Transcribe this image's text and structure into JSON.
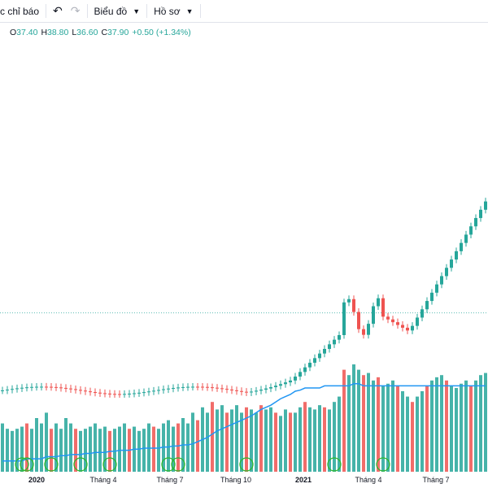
{
  "toolbar": {
    "indicators_label": "c chỉ báo",
    "chart_label": "Biểu đồ",
    "profile_label": "Hồ sơ"
  },
  "ohlc": {
    "open_label": "O",
    "open": "37.40",
    "high_label": "H",
    "high": "38.80",
    "low_label": "L",
    "low": "36.60",
    "close_label": "C",
    "close": "37.90",
    "change": "+0.50 (+1.34%)"
  },
  "colors": {
    "up": "#26a69a",
    "down": "#ef5350",
    "ma": "#2196f3",
    "event": "#2eb82e"
  },
  "chart_data": {
    "type": "candlestick",
    "x_axis_labels": [
      {
        "text": "2020",
        "bold": true
      },
      {
        "text": "Tháng 4",
        "bold": false
      },
      {
        "text": "Tháng 7",
        "bold": false
      },
      {
        "text": "Tháng 10",
        "bold": false
      },
      {
        "text": "2021",
        "bold": true
      },
      {
        "text": "Tháng 4",
        "bold": false
      },
      {
        "text": "Tháng 7",
        "bold": false
      }
    ],
    "y_range": [
      0,
      45
    ],
    "volume_range": [
      0,
      100
    ],
    "current_price_line": 37.9,
    "candles": [
      [
        0,
        0,
        1,
        0,
        45
      ],
      [
        0,
        0,
        1,
        0,
        40
      ],
      [
        0,
        0,
        1,
        0,
        38
      ],
      [
        0,
        0,
        1,
        0,
        40
      ],
      [
        0,
        0,
        1,
        0,
        42
      ],
      [
        1,
        0,
        1,
        0,
        45
      ],
      [
        0,
        0,
        1,
        0,
        40
      ],
      [
        0,
        0,
        1,
        0,
        50
      ],
      [
        0,
        0,
        1,
        0,
        45
      ],
      [
        0,
        0,
        1,
        0,
        55
      ],
      [
        1,
        0,
        1,
        0,
        40
      ],
      [
        0,
        0,
        1,
        0,
        45
      ],
      [
        0,
        0,
        1,
        0,
        40
      ],
      [
        0,
        0,
        1,
        0,
        50
      ],
      [
        0,
        0,
        1,
        0,
        45
      ],
      [
        1,
        0,
        1,
        0,
        40
      ],
      [
        0,
        0,
        1,
        0,
        38
      ],
      [
        0,
        0,
        1,
        0,
        40
      ],
      [
        0,
        0,
        1,
        0,
        42
      ],
      [
        0,
        0,
        1,
        0,
        45
      ],
      [
        0,
        0,
        1,
        0,
        40
      ],
      [
        0,
        0,
        1,
        0,
        42
      ],
      [
        1,
        0,
        1,
        0,
        38
      ],
      [
        0,
        0,
        1,
        0,
        40
      ],
      [
        0,
        0,
        1,
        0,
        42
      ],
      [
        0,
        0,
        1,
        0,
        45
      ],
      [
        1,
        0,
        1,
        0,
        40
      ],
      [
        0,
        0,
        1,
        0,
        42
      ],
      [
        0,
        0,
        1,
        0,
        38
      ],
      [
        0,
        0,
        1,
        0,
        40
      ],
      [
        0,
        0,
        1,
        0,
        45
      ],
      [
        1,
        0,
        1,
        0,
        42
      ],
      [
        0,
        0,
        1,
        0,
        40
      ],
      [
        0,
        0,
        1,
        0,
        45
      ],
      [
        0,
        0,
        1,
        0,
        48
      ],
      [
        0,
        0,
        1,
        0,
        42
      ],
      [
        1,
        0,
        1,
        0,
        45
      ],
      [
        0,
        0,
        1,
        0,
        50
      ],
      [
        0,
        0,
        1,
        0,
        45
      ],
      [
        0,
        0,
        1,
        0,
        55
      ],
      [
        1,
        0,
        1,
        0,
        48
      ],
      [
        0,
        0,
        1,
        0,
        60
      ],
      [
        0,
        0,
        1,
        0,
        55
      ],
      [
        1,
        0,
        1,
        0,
        65
      ],
      [
        0,
        0,
        1,
        0,
        58
      ],
      [
        0,
        0,
        1,
        0,
        62
      ],
      [
        1,
        0,
        1,
        0,
        55
      ],
      [
        0,
        0,
        1,
        0,
        58
      ],
      [
        0,
        0,
        1,
        0,
        62
      ],
      [
        0,
        0,
        1,
        0,
        55
      ],
      [
        1,
        0,
        1,
        0,
        60
      ],
      [
        0,
        0,
        1,
        0,
        58
      ],
      [
        0,
        0,
        1,
        0,
        55
      ],
      [
        1,
        0,
        1,
        0,
        62
      ],
      [
        0,
        0,
        1,
        0,
        58
      ],
      [
        0,
        0,
        1,
        0,
        60
      ],
      [
        1,
        0,
        1,
        0,
        55
      ],
      [
        0,
        0,
        1,
        0,
        52
      ],
      [
        0,
        0,
        1,
        0,
        58
      ],
      [
        1,
        0,
        1,
        0,
        55
      ],
      [
        0,
        0,
        1,
        0,
        55
      ],
      [
        0,
        0,
        1,
        0,
        60
      ],
      [
        1,
        0,
        1,
        0,
        65
      ],
      [
        0,
        0,
        1,
        0,
        60
      ],
      [
        0,
        0,
        1,
        0,
        58
      ],
      [
        0,
        0,
        1,
        0,
        62
      ],
      [
        1,
        0,
        1,
        0,
        60
      ],
      [
        0,
        0,
        1,
        0,
        58
      ],
      [
        0,
        0,
        1,
        0,
        65
      ],
      [
        0,
        0,
        1,
        0,
        70
      ],
      [
        1,
        0,
        1,
        0,
        95
      ],
      [
        0,
        0,
        1,
        0,
        90
      ],
      [
        0,
        0,
        1,
        0,
        100
      ],
      [
        0,
        0,
        1,
        0,
        95
      ],
      [
        1,
        0,
        1,
        0,
        90
      ],
      [
        0,
        0,
        1,
        0,
        92
      ],
      [
        0,
        0,
        1,
        0,
        85
      ],
      [
        1,
        0,
        1,
        0,
        88
      ],
      [
        0,
        0,
        1,
        0,
        80
      ],
      [
        0,
        0,
        1,
        0,
        82
      ],
      [
        0,
        0,
        1,
        0,
        85
      ],
      [
        1,
        0,
        1,
        0,
        80
      ],
      [
        0,
        0,
        1,
        0,
        75
      ],
      [
        0,
        0,
        1,
        0,
        70
      ],
      [
        1,
        0,
        1,
        0,
        65
      ],
      [
        0,
        0,
        1,
        0,
        70
      ],
      [
        0,
        0,
        1,
        0,
        75
      ],
      [
        1,
        0,
        1,
        0,
        80
      ],
      [
        0,
        0,
        1,
        0,
        85
      ],
      [
        0,
        0,
        1,
        0,
        88
      ],
      [
        0,
        0,
        1,
        0,
        90
      ],
      [
        1,
        0,
        1,
        0,
        85
      ],
      [
        0,
        0,
        1,
        0,
        80
      ],
      [
        0,
        0,
        1,
        0,
        78
      ],
      [
        0,
        0,
        1,
        0,
        82
      ],
      [
        0,
        0,
        1,
        0,
        85
      ],
      [
        1,
        0,
        1,
        0,
        80
      ],
      [
        0,
        0,
        1,
        0,
        85
      ],
      [
        0,
        0,
        1,
        0,
        90
      ],
      [
        0,
        0,
        1,
        0,
        92
      ]
    ],
    "volume_ma": [
      10,
      10,
      10,
      10,
      10,
      12,
      12,
      12,
      12,
      14,
      14,
      14,
      15,
      15,
      16,
      16,
      16,
      17,
      17,
      18,
      18,
      18,
      19,
      19,
      20,
      20,
      20,
      21,
      21,
      22,
      22,
      22,
      22,
      23,
      23,
      24,
      24,
      25,
      25,
      26,
      28,
      30,
      32,
      35,
      38,
      40,
      42,
      44,
      46,
      48,
      50,
      52,
      55,
      58,
      60,
      62,
      65,
      68,
      70,
      72,
      75,
      76,
      78,
      78,
      78,
      78,
      80,
      80,
      80,
      80,
      80,
      80,
      82,
      82,
      80,
      80,
      80,
      80,
      80,
      80,
      80,
      80,
      80,
      80,
      80,
      80,
      80,
      80,
      80,
      80,
      80,
      80,
      80,
      80,
      80,
      80,
      80,
      80,
      80,
      80
    ],
    "events": [
      4,
      5,
      10,
      16,
      22,
      34,
      36,
      50,
      68,
      78
    ],
    "events_note": ""
  }
}
